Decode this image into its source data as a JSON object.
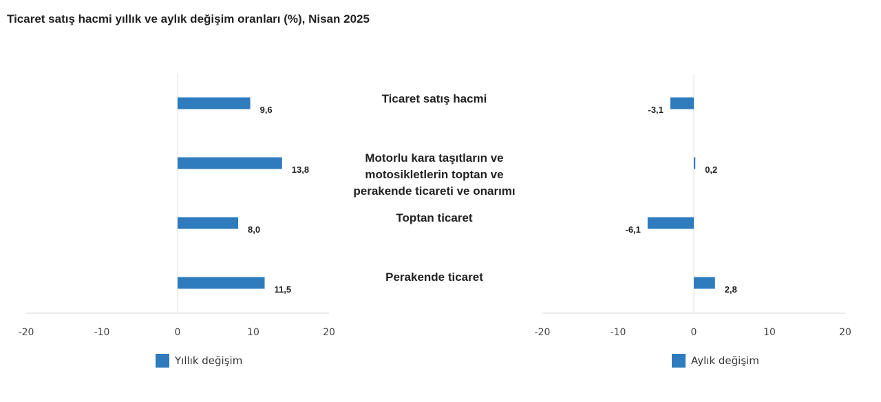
{
  "title": "Ticaret satış hacmi yıllık ve aylık değişim oranları (%), Nisan 2025",
  "chart_data": [
    {
      "type": "bar",
      "orientation": "horizontal",
      "categories": [
        "Ticaret satış hacmi",
        "Motorlu kara taşıtların ve motosikletlerin toptan ve perakende ticareti ve onarımı",
        "Toptan ticaret",
        "Perakende ticaret"
      ],
      "category_lines": [
        [
          "Ticaret satış hacmi"
        ],
        [
          "Motorlu kara taşıtların ve",
          "motosikletlerin toptan ve",
          "perakende ticareti ve onarımı"
        ],
        [
          "Toptan ticaret"
        ],
        [
          "Perakende ticaret"
        ]
      ],
      "series": [
        {
          "name": "Yıllık değişim",
          "values": [
            9.6,
            13.8,
            8.0,
            11.5
          ],
          "labels": [
            "9,6",
            "13,8",
            "8,0",
            "11,5"
          ]
        }
      ],
      "xlim": [
        -20,
        20
      ],
      "ticks": [
        -20,
        -10,
        0,
        10,
        20
      ],
      "tick_labels": [
        "-20",
        "-10",
        "0",
        "10",
        "20"
      ],
      "legend": "bottom",
      "color": "#2e7bbd",
      "grid": false
    },
    {
      "type": "bar",
      "orientation": "horizontal",
      "categories": [
        "Ticaret satış hacmi",
        "Motorlu kara taşıtların ve motosikletlerin toptan ve perakende ticareti ve onarımı",
        "Toptan ticaret",
        "Perakende ticaret"
      ],
      "series": [
        {
          "name": "Aylık değişim",
          "values": [
            -3.1,
            0.2,
            -6.1,
            2.8
          ],
          "labels": [
            "-3,1",
            "0,2",
            "-6,1",
            "2,8"
          ]
        }
      ],
      "xlim": [
        -20,
        20
      ],
      "ticks": [
        -20,
        -10,
        0,
        10,
        20
      ],
      "tick_labels": [
        "-20",
        "-10",
        "0",
        "10",
        "20"
      ],
      "legend": "bottom",
      "color": "#2e7bbd",
      "grid": false
    }
  ]
}
